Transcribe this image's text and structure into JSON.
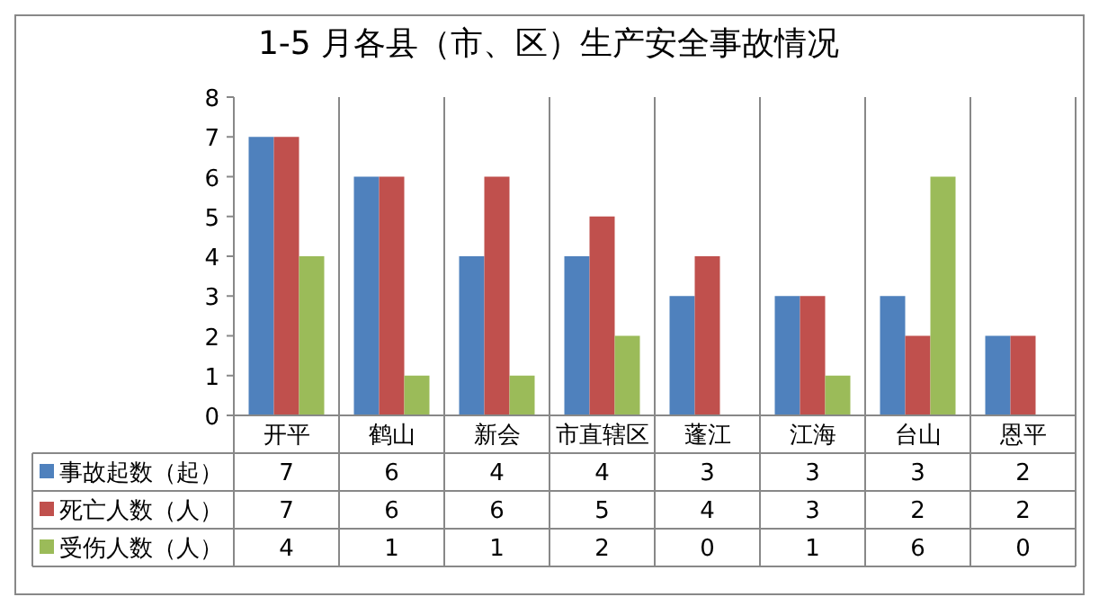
{
  "chart_data": {
    "type": "bar",
    "title": "1-5 月各县（市、区）生产安全事故情况",
    "categories": [
      "开平",
      "鹤山",
      "新会",
      "市直辖区",
      "蓬江",
      "江海",
      "台山",
      "恩平"
    ],
    "series": [
      {
        "name": "事故起数（起）",
        "color": "#4f81bd",
        "values": [
          7,
          6,
          4,
          4,
          3,
          3,
          3,
          2
        ]
      },
      {
        "name": "死亡人数（人）",
        "color": "#c0504d",
        "values": [
          7,
          6,
          6,
          5,
          4,
          3,
          2,
          2
        ]
      },
      {
        "name": "受伤人数（人）",
        "color": "#9bbb59",
        "values": [
          4,
          1,
          1,
          2,
          0,
          1,
          6,
          0
        ]
      }
    ],
    "ylim": [
      0,
      8
    ],
    "yticks": [
      0,
      1,
      2,
      3,
      4,
      5,
      6,
      7,
      8
    ],
    "data_labels": true,
    "legend": "bottom",
    "grid": false
  }
}
